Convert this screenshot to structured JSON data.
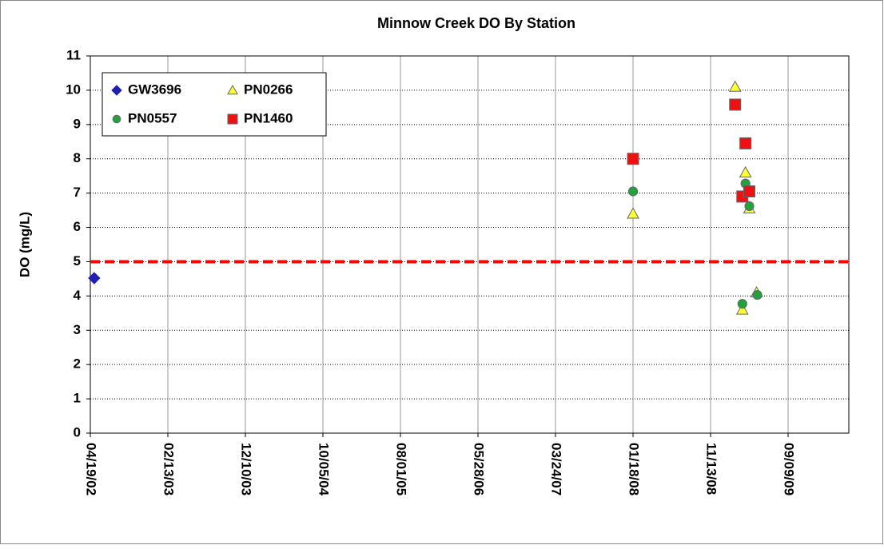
{
  "chart_data": {
    "type": "scatter",
    "title": "Minnow Creek DO By Station",
    "y_label": "DO (mg/L)",
    "xlim": [
      37365,
      40300
    ],
    "xticks": [
      {
        "value": 37365,
        "label": "04/19/02"
      },
      {
        "value": 37665,
        "label": "02/13/03"
      },
      {
        "value": 37965,
        "label": "12/10/03"
      },
      {
        "value": 38265,
        "label": "10/05/04"
      },
      {
        "value": 38565,
        "label": "08/01/05"
      },
      {
        "value": 38865,
        "label": "05/28/06"
      },
      {
        "value": 39165,
        "label": "03/24/07"
      },
      {
        "value": 39465,
        "label": "01/18/08"
      },
      {
        "value": 39765,
        "label": "11/13/08"
      },
      {
        "value": 40065,
        "label": "09/09/09"
      }
    ],
    "ylim": [
      0,
      11
    ],
    "yticks": [
      0,
      1,
      2,
      3,
      4,
      5,
      6,
      7,
      8,
      9,
      10,
      11
    ],
    "grid": true,
    "hline": {
      "value": 5,
      "color": "#ff0000"
    },
    "legend": "top-left",
    "series": [
      {
        "name": "GW3696",
        "color": "#1f1fb4",
        "marker": "diamond",
        "x": [
          37380
        ],
        "values": [
          4.52
        ]
      },
      {
        "name": "PN0266",
        "color": "#ffff33",
        "marker": "triangle",
        "x": [
          39465,
          39860,
          39900,
          39888,
          39915,
          39943
        ],
        "values": [
          6.4,
          10.1,
          7.6,
          3.6,
          6.55,
          4.1
        ]
      },
      {
        "name": "PN0557",
        "color": "#1fa33a",
        "marker": "circle",
        "x": [
          39465,
          39900,
          39888,
          39915,
          39946
        ],
        "values": [
          7.05,
          7.28,
          3.77,
          6.62,
          4.03
        ]
      },
      {
        "name": "PN1460",
        "color": "#ee1111",
        "marker": "square",
        "x": [
          39465,
          39860,
          39900,
          39888,
          39915
        ],
        "values": [
          8.0,
          9.58,
          8.45,
          6.9,
          7.05
        ]
      }
    ]
  }
}
